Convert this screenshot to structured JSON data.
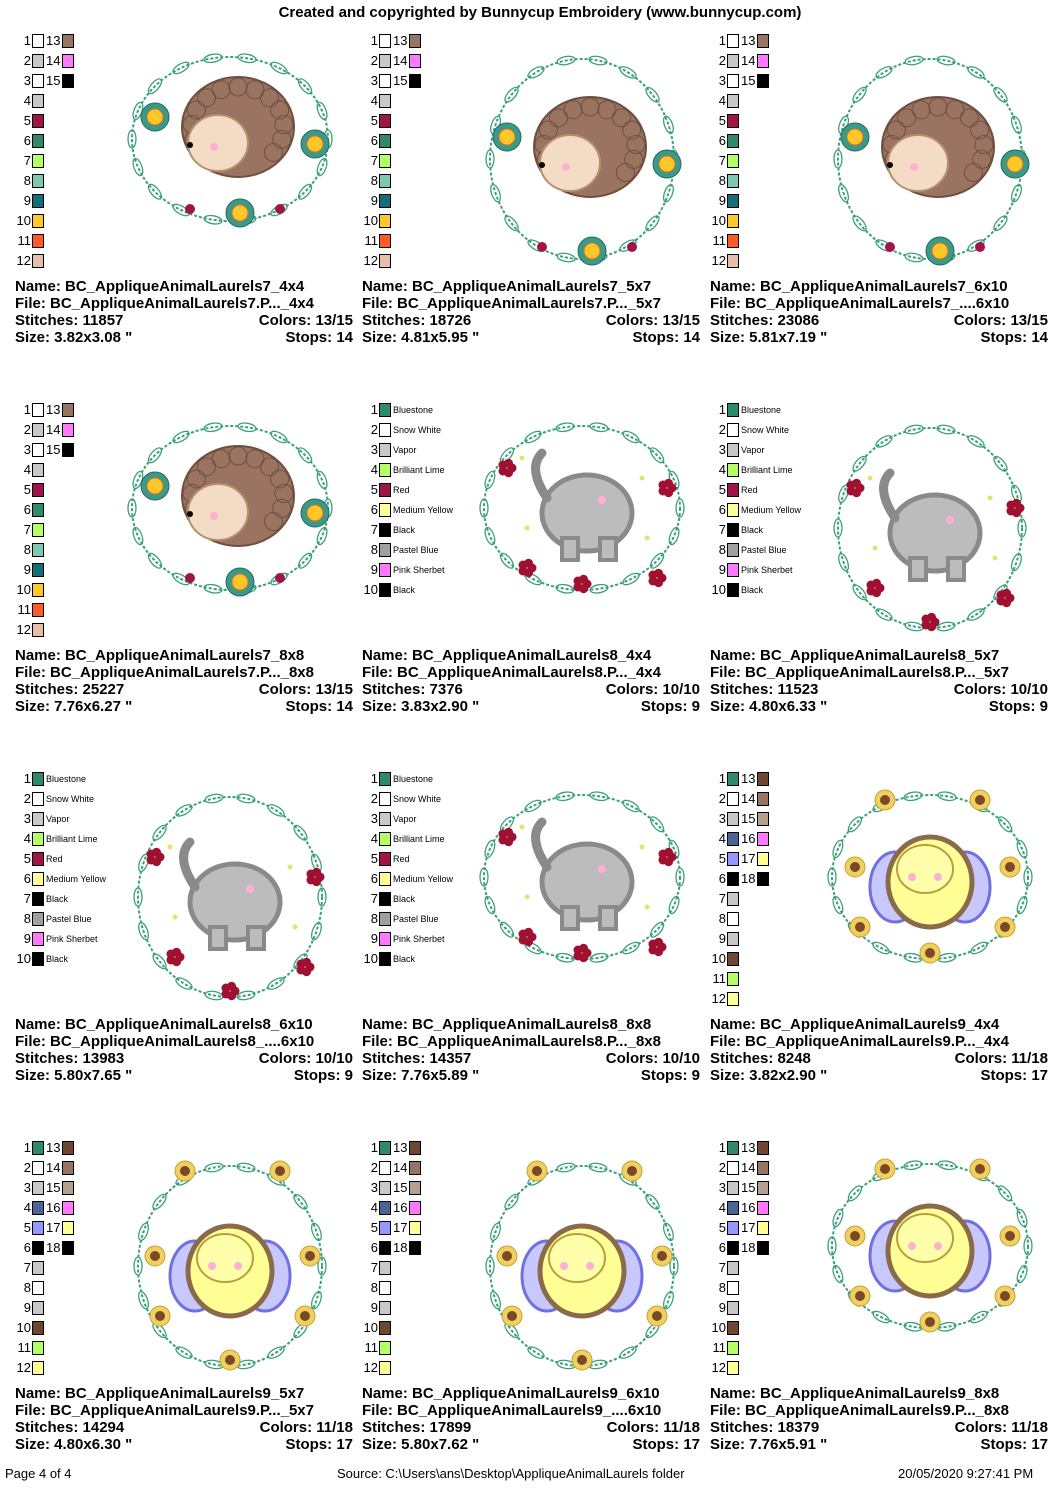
{
  "header": "Created and copyrighted by Bunnycup Embroidery (www.bunnycup.com)",
  "labels": {
    "name": "Name:",
    "file": "File:",
    "stitches": "Stitches:",
    "size": "Size:",
    "colors": "Colors:",
    "stops": "Stops:"
  },
  "palettes": {
    "hedgehog": [
      "#ffffff",
      "#c8c8c8",
      "#ffffff",
      "#c8c8c8",
      "#a0144a",
      "#2e8b6a",
      "#b4ff64",
      "#7cc8b4",
      "#146e7a",
      "#ffc828",
      "#ff5a28",
      "#e6beaa",
      "#967564",
      "#ff78ff",
      "#000000"
    ],
    "bee": [
      "#2e8b6a",
      "#ffffff",
      "#c8c8c8",
      "#4a6496",
      "#9696ff",
      "#000000",
      "#c8c8c8",
      "#ffffff",
      "#c8c8c8",
      "#6e4632",
      "#b4ff64",
      "#ffff96",
      "#6e4632",
      "#967564",
      "#b4a08c",
      "#ff78ff",
      "#ffff96",
      "#000000"
    ]
  },
  "elephant_colors": [
    {
      "name": "Bluestone",
      "color": "#2e8b6a"
    },
    {
      "name": "Snow White",
      "color": "#ffffff"
    },
    {
      "name": "Vapor",
      "color": "#c8c8c8"
    },
    {
      "name": "Brilliant Lime",
      "color": "#b4ff64"
    },
    {
      "name": "Red",
      "color": "#a0144a"
    },
    {
      "name": "Medium Yellow",
      "color": "#ffff96"
    },
    {
      "name": "Black",
      "color": "#000000"
    },
    {
      "name": "Pastel Blue",
      "color": "#a0a0a0"
    },
    {
      "name": "Pink Sherbet",
      "color": "#ff78ff"
    },
    {
      "name": "Black",
      "color": "#000000"
    }
  ],
  "designs": [
    {
      "name": "BC_AppliqueAnimalLaurels7_4x4",
      "file": "BC_AppliqueAnimalLaurels7.P..._4x4",
      "stitches": "11857",
      "colors": "13/15",
      "size": "3.82x3.08 \"",
      "stops": "14",
      "palette": "hedgehog",
      "motif": "hedgehog",
      "variant": "4x4"
    },
    {
      "name": "BC_AppliqueAnimalLaurels7_5x7",
      "file": "BC_AppliqueAnimalLaurels7.P..._5x7",
      "stitches": "18726",
      "colors": "13/15",
      "size": "4.81x5.95 \"",
      "stops": "14",
      "palette": "hedgehog",
      "motif": "hedgehog",
      "variant": "tall"
    },
    {
      "name": "BC_AppliqueAnimalLaurels7_6x10",
      "file": "BC_AppliqueAnimalLaurels7_....6x10",
      "stitches": "23086",
      "colors": "13/15",
      "size": "5.81x7.19 \"",
      "stops": "14",
      "palette": "hedgehog",
      "motif": "hedgehog",
      "variant": "tall"
    },
    {
      "name": "BC_AppliqueAnimalLaurels7_8x8",
      "file": "BC_AppliqueAnimalLaurels7.P..._8x8",
      "stitches": "25227",
      "colors": "13/15",
      "size": "7.76x6.27 \"",
      "stops": "14",
      "palette": "hedgehog",
      "motif": "hedgehog",
      "variant": "4x4"
    },
    {
      "name": "BC_AppliqueAnimalLaurels8_4x4",
      "file": "BC_AppliqueAnimalLaurels8.P..._4x4",
      "stitches": "7376",
      "colors": "10/10",
      "size": "3.83x2.90 \"",
      "stops": "9",
      "palette": "elephant",
      "motif": "elephant",
      "variant": "4x4"
    },
    {
      "name": "BC_AppliqueAnimalLaurels8_5x7",
      "file": "BC_AppliqueAnimalLaurels8.P..._5x7",
      "stitches": "11523",
      "colors": "10/10",
      "size": "4.80x6.33 \"",
      "stops": "9",
      "palette": "elephant",
      "motif": "elephant",
      "variant": "tall"
    },
    {
      "name": "BC_AppliqueAnimalLaurels8_6x10",
      "file": "BC_AppliqueAnimalLaurels8_....6x10",
      "stitches": "13983",
      "colors": "10/10",
      "size": "5.80x7.65 \"",
      "stops": "9",
      "palette": "elephant",
      "motif": "elephant",
      "variant": "tall"
    },
    {
      "name": "BC_AppliqueAnimalLaurels8_8x8",
      "file": "BC_AppliqueAnimalLaurels8.P..._8x8",
      "stitches": "14357",
      "colors": "10/10",
      "size": "7.76x5.89 \"",
      "stops": "9",
      "palette": "elephant",
      "motif": "elephant",
      "variant": "4x4"
    },
    {
      "name": "BC_AppliqueAnimalLaurels9_4x4",
      "file": "BC_AppliqueAnimalLaurels9.P..._4x4",
      "stitches": "8248",
      "colors": "11/18",
      "size": "3.82x2.90 \"",
      "stops": "17",
      "palette": "bee",
      "motif": "bee",
      "variant": "4x4"
    },
    {
      "name": "BC_AppliqueAnimalLaurels9_5x7",
      "file": "BC_AppliqueAnimalLaurels9.P..._5x7",
      "stitches": "14294",
      "colors": "11/18",
      "size": "4.80x6.30 \"",
      "stops": "17",
      "palette": "bee",
      "motif": "bee",
      "variant": "tall"
    },
    {
      "name": "BC_AppliqueAnimalLaurels9_6x10",
      "file": "BC_AppliqueAnimalLaurels9_....6x10",
      "stitches": "17899",
      "colors": "11/18",
      "size": "5.80x7.62 \"",
      "stops": "17",
      "palette": "bee",
      "motif": "bee",
      "variant": "tall"
    },
    {
      "name": "BC_AppliqueAnimalLaurels9_8x8",
      "file": "BC_AppliqueAnimalLaurels9.P..._8x8",
      "stitches": "18379",
      "colors": "11/18",
      "size": "7.76x5.91 \"",
      "stops": "17",
      "palette": "bee",
      "motif": "bee",
      "variant": "4x4"
    }
  ],
  "footer": {
    "page": "Page 4 of 4",
    "source": "Source: C:\\Users\\ans\\Desktop\\AppliqueAnimalLaurels folder",
    "timestamp": "20/05/2020 9:27:41 PM"
  }
}
